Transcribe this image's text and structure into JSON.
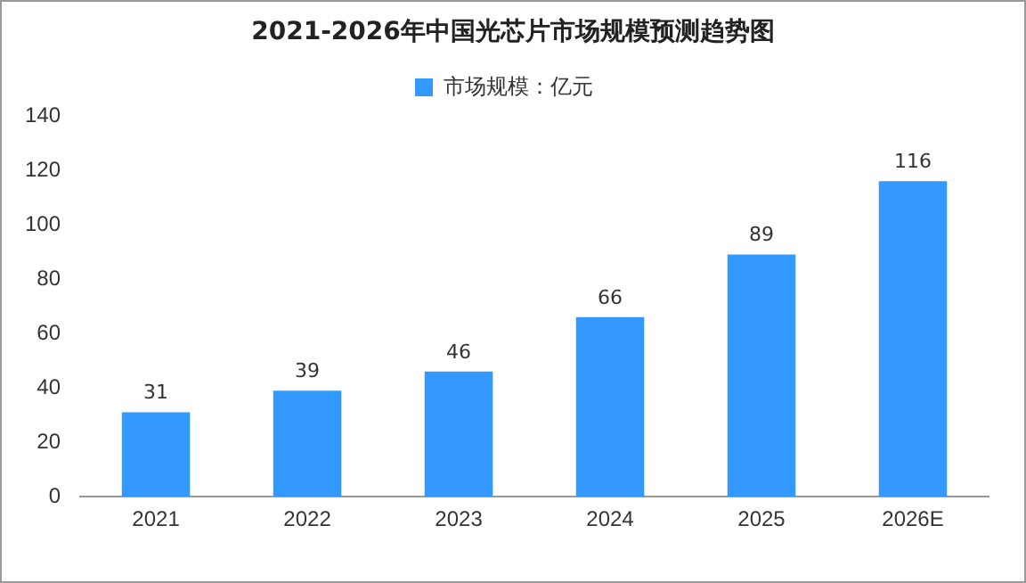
{
  "chart_data": {
    "type": "bar",
    "title": "2021-2026年中国光芯片市场规模预测趋势图",
    "categories": [
      "2021",
      "2022",
      "2023",
      "2024",
      "2025",
      "2026E"
    ],
    "series": [
      {
        "name": "市场规模：亿元",
        "color": "#3399ff",
        "values": [
          31,
          39,
          46,
          66,
          89,
          116
        ]
      }
    ],
    "ylim": [
      0,
      140
    ],
    "yticks": [
      0,
      20,
      40,
      60,
      80,
      100,
      120,
      140
    ],
    "grid": false,
    "legend": "top",
    "data_labels": true
  }
}
